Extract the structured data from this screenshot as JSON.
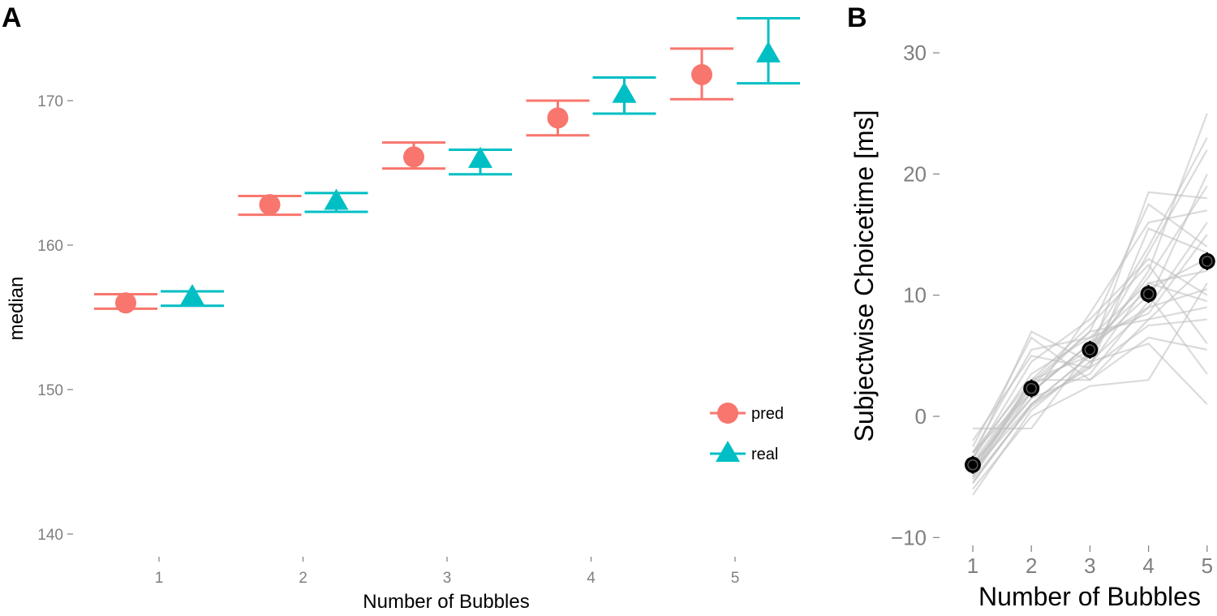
{
  "chart_data": [
    {
      "panel": "A",
      "type": "scatter",
      "xlabel": "Number of Bubbles",
      "ylabel": "median",
      "categories": [
        "1",
        "2",
        "3",
        "4",
        "5"
      ],
      "y_ticks": [
        "140",
        "150",
        "160",
        "170"
      ],
      "ylim": [
        137.5,
        177
      ],
      "grid": false,
      "legend_position": "bottom-right",
      "colors": {
        "pred": "#F8766D",
        "real": "#00BFC4"
      },
      "series": [
        {
          "name": "pred",
          "marker": "circle",
          "values": [
            156.0,
            162.8,
            166.1,
            168.8,
            171.8
          ],
          "lower": [
            155.6,
            162.1,
            165.3,
            167.6,
            170.1
          ],
          "upper": [
            156.6,
            163.4,
            167.1,
            170.0,
            173.6
          ]
        },
        {
          "name": "real",
          "marker": "triangle",
          "values": [
            156.4,
            163.0,
            165.9,
            170.4,
            173.2
          ],
          "lower": [
            155.8,
            162.3,
            164.9,
            169.1,
            171.2
          ],
          "upper": [
            156.8,
            163.6,
            166.6,
            171.6,
            175.7
          ]
        }
      ]
    },
    {
      "panel": "B",
      "type": "line",
      "xlabel": "Number of Bubbles",
      "ylabel": "Subjectwise Choicetime [ms]",
      "x": [
        "1",
        "2",
        "3",
        "4",
        "5"
      ],
      "y_ticks": [
        "−10",
        "0",
        "10",
        "20",
        "30"
      ],
      "ylim": [
        -12,
        34
      ],
      "grid": false,
      "line_color": "#bdbdbd",
      "point_color": "#000000",
      "mean": [
        -4.0,
        2.3,
        5.5,
        10.1,
        12.8
      ],
      "subjects": [
        [
          -6.5,
          0.5,
          4.5,
          9.0,
          16.0
        ],
        [
          -5.5,
          1.0,
          5.0,
          12.0,
          25.0
        ],
        [
          -5.0,
          2.0,
          6.0,
          14.0,
          23.0
        ],
        [
          -4.5,
          3.0,
          5.0,
          18.5,
          18.0
        ],
        [
          -4.0,
          2.5,
          7.0,
          17.5,
          14.0
        ],
        [
          -3.5,
          4.5,
          8.0,
          13.0,
          10.0
        ],
        [
          -3.0,
          5.5,
          6.5,
          11.0,
          12.0
        ],
        [
          -2.5,
          6.5,
          3.0,
          8.0,
          9.0
        ],
        [
          -3.5,
          7.0,
          4.5,
          6.0,
          1.0
        ],
        [
          -4.5,
          1.5,
          3.5,
          9.5,
          20.0
        ],
        [
          -4.0,
          2.0,
          6.0,
          10.5,
          13.0
        ],
        [
          -5.5,
          1.0,
          4.0,
          7.5,
          8.0
        ],
        [
          -3.0,
          3.0,
          7.5,
          12.5,
          6.0
        ],
        [
          -6.0,
          0.0,
          2.5,
          3.0,
          11.0
        ],
        [
          -4.5,
          2.5,
          5.5,
          11.5,
          19.0
        ],
        [
          -3.5,
          3.5,
          6.5,
          8.5,
          15.0
        ],
        [
          -2.0,
          5.0,
          4.0,
          15.5,
          13.5
        ],
        [
          -1.0,
          -1.0,
          5.5,
          10.0,
          3.5
        ],
        [
          -4.0,
          1.5,
          8.5,
          16.0,
          17.0
        ],
        [
          -5.0,
          3.0,
          3.0,
          6.5,
          5.5
        ],
        [
          -3.0,
          2.0,
          6.0,
          9.0,
          10.5
        ],
        [
          -4.5,
          1.0,
          5.0,
          13.5,
          22.0
        ],
        [
          -3.8,
          2.8,
          7.0,
          8.0,
          12.5
        ],
        [
          -5.2,
          0.8,
          4.2,
          11.0,
          9.5
        ]
      ]
    }
  ]
}
